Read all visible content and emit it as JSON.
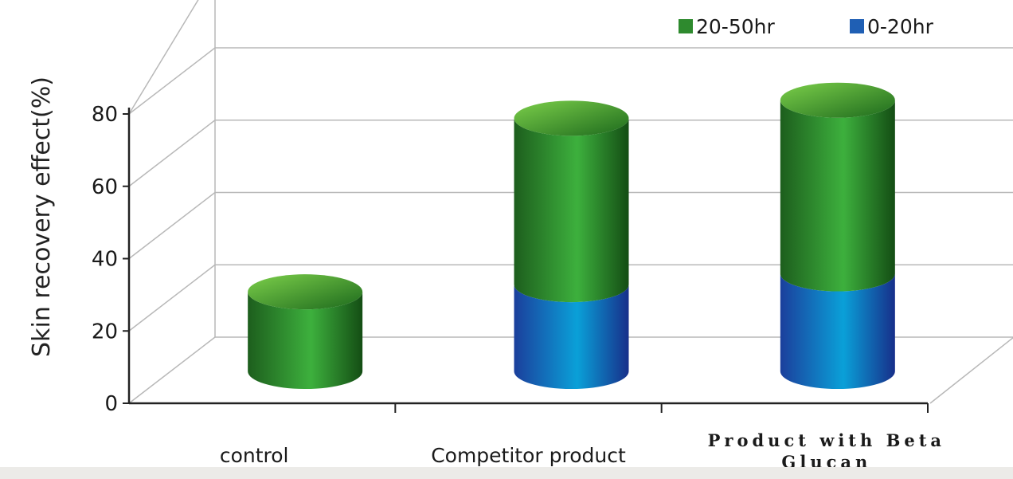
{
  "chart_data": {
    "type": "bar",
    "stacked": true,
    "style": "3d-cylinder",
    "title": "",
    "ylabel": "Skin recovery effect(%)",
    "xlabel": "",
    "ylim": [
      0,
      80
    ],
    "yticks": [
      "0",
      "20",
      "40",
      "60",
      "80"
    ],
    "grid": true,
    "legend_position": "top-right",
    "categories": [
      "control",
      "Competitor product",
      "Product with Beta Glucan"
    ],
    "series": [
      {
        "name": "0-20hr",
        "color": "#1f5fb4",
        "values": [
          0,
          24,
          27
        ]
      },
      {
        "name": "20-50hr",
        "color": "#2e8a2e",
        "values": [
          22,
          46,
          48
        ]
      }
    ],
    "legend": [
      {
        "name": "20-50hr",
        "color": "#2e8a2e"
      },
      {
        "name": "0-20hr",
        "color": "#1f5fb4"
      }
    ]
  }
}
